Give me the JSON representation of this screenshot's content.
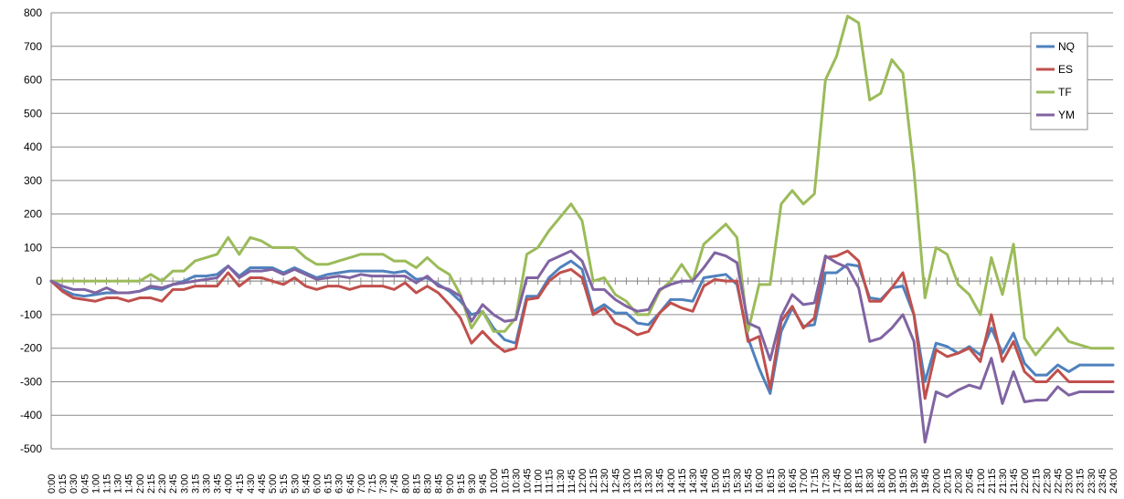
{
  "chart_data": {
    "type": "line",
    "title": "",
    "xlabel": "",
    "ylabel": "",
    "ylim": [
      -500,
      800
    ],
    "yticks": [
      -500,
      -400,
      -300,
      -200,
      -100,
      0,
      100,
      200,
      300,
      400,
      500,
      600,
      700,
      800
    ],
    "grid": "horizontal",
    "legend_position": "right",
    "x": [
      "0:00",
      "0:15",
      "0:30",
      "0:45",
      "1:00",
      "1:15",
      "1:30",
      "1:45",
      "2:00",
      "2:15",
      "2:30",
      "2:45",
      "3:00",
      "3:15",
      "3:30",
      "3:45",
      "4:00",
      "4:15",
      "4:30",
      "4:45",
      "5:00",
      "5:15",
      "5:30",
      "5:45",
      "6:00",
      "6:15",
      "6:30",
      "6:45",
      "7:00",
      "7:15",
      "7:30",
      "7:45",
      "8:00",
      "8:15",
      "8:30",
      "8:45",
      "9:00",
      "9:15",
      "9:30",
      "9:45",
      "10:00",
      "10:15",
      "10:30",
      "10:45",
      "11:00",
      "11:15",
      "11:30",
      "11:45",
      "12:00",
      "12:15",
      "12:30",
      "12:45",
      "13:00",
      "13:15",
      "13:30",
      "13:45",
      "14:00",
      "14:15",
      "14:30",
      "14:45",
      "15:00",
      "15:15",
      "15:30",
      "15:45",
      "16:00",
      "16:15",
      "16:30",
      "16:45",
      "17:00",
      "17:15",
      "17:30",
      "17:45",
      "18:00",
      "18:15",
      "18:30",
      "18:45",
      "19:00",
      "19:15",
      "19:30",
      "19:45",
      "20:00",
      "20:15",
      "20:30",
      "20:45",
      "21:00",
      "21:15",
      "21:30",
      "21:45",
      "22:00",
      "22:15",
      "22:30",
      "22:45",
      "23:00",
      "23:15",
      "23:30",
      "23:45",
      "24:00"
    ],
    "series": [
      {
        "name": "NQ",
        "color": "#4F81BD",
        "values": [
          0,
          -25,
          -40,
          -45,
          -40,
          -35,
          -35,
          -35,
          -30,
          -20,
          -25,
          -10,
          0,
          15,
          15,
          20,
          45,
          15,
          40,
          40,
          40,
          25,
          40,
          25,
          10,
          20,
          25,
          30,
          30,
          30,
          30,
          25,
          30,
          5,
          10,
          -10,
          -30,
          -60,
          -100,
          -90,
          -140,
          -175,
          -185,
          -45,
          -45,
          10,
          40,
          60,
          35,
          -90,
          -70,
          -95,
          -95,
          -125,
          -130,
          -95,
          -55,
          -55,
          -60,
          10,
          15,
          20,
          -10,
          -170,
          -260,
          -335,
          -150,
          -80,
          -135,
          -130,
          25,
          25,
          50,
          45,
          -50,
          -55,
          -20,
          -15,
          -100,
          -300,
          -185,
          -195,
          -215,
          -195,
          -220,
          -140,
          -215,
          -155,
          -245,
          -280,
          -280,
          -250,
          -270,
          -250,
          -250,
          -250,
          -250
        ]
      },
      {
        "name": "ES",
        "color": "#C0504D",
        "values": [
          0,
          -30,
          -50,
          -55,
          -60,
          -50,
          -50,
          -60,
          -50,
          -50,
          -60,
          -25,
          -25,
          -15,
          -15,
          -15,
          25,
          -15,
          10,
          10,
          0,
          -10,
          10,
          -15,
          -25,
          -15,
          -15,
          -25,
          -15,
          -15,
          -15,
          -25,
          -5,
          -35,
          -15,
          -35,
          -70,
          -110,
          -185,
          -150,
          -185,
          -210,
          -200,
          -55,
          -50,
          0,
          25,
          35,
          10,
          -100,
          -80,
          -125,
          -140,
          -160,
          -150,
          -95,
          -65,
          -80,
          -90,
          -15,
          5,
          0,
          0,
          -180,
          -165,
          -320,
          -120,
          -75,
          -140,
          -110,
          70,
          75,
          90,
          60,
          -60,
          -60,
          -20,
          25,
          -100,
          -350,
          -205,
          -225,
          -215,
          -200,
          -240,
          -100,
          -240,
          -180,
          -270,
          -300,
          -300,
          -265,
          -300,
          -300,
          -300,
          -300,
          -300
        ]
      },
      {
        "name": "TF",
        "color": "#9BBB59",
        "values": [
          0,
          0,
          0,
          0,
          0,
          0,
          0,
          0,
          0,
          20,
          0,
          30,
          30,
          60,
          70,
          80,
          130,
          80,
          130,
          120,
          100,
          100,
          100,
          70,
          50,
          50,
          60,
          70,
          80,
          80,
          80,
          60,
          60,
          40,
          70,
          40,
          20,
          -40,
          -140,
          -90,
          -150,
          -150,
          -110,
          80,
          100,
          150,
          190,
          230,
          180,
          0,
          10,
          -40,
          -60,
          -100,
          -100,
          -30,
          0,
          50,
          0,
          110,
          140,
          170,
          130,
          -150,
          -10,
          -10,
          230,
          270,
          230,
          260,
          600,
          670,
          790,
          770,
          540,
          560,
          660,
          620,
          330,
          -50,
          100,
          80,
          -10,
          -40,
          -100,
          70,
          -40,
          110,
          -170,
          -220,
          -180,
          -140,
          -180,
          -190,
          -200,
          -200,
          -200
        ]
      },
      {
        "name": "YM",
        "color": "#8064A2",
        "values": [
          0,
          -15,
          -25,
          -25,
          -35,
          -20,
          -35,
          -35,
          -30,
          -15,
          -20,
          -10,
          -5,
          0,
          5,
          10,
          45,
          10,
          30,
          30,
          35,
          20,
          35,
          20,
          5,
          10,
          15,
          10,
          20,
          15,
          15,
          15,
          15,
          -5,
          15,
          -15,
          -25,
          -45,
          -120,
          -70,
          -100,
          -120,
          -115,
          10,
          10,
          60,
          75,
          90,
          60,
          -25,
          -25,
          -55,
          -75,
          -90,
          -85,
          -25,
          -10,
          0,
          0,
          40,
          85,
          75,
          55,
          -125,
          -140,
          -235,
          -105,
          -40,
          -70,
          -65,
          75,
          55,
          40,
          -20,
          -180,
          -170,
          -140,
          -100,
          -180,
          -480,
          -330,
          -345,
          -325,
          -310,
          -320,
          -230,
          -365,
          -270,
          -360,
          -355,
          -355,
          -315,
          -340,
          -330,
          -330,
          -330,
          -330
        ]
      }
    ]
  }
}
